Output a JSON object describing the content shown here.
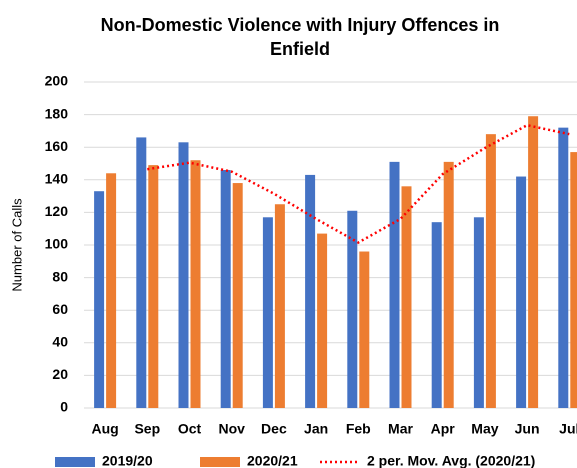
{
  "chart_data": {
    "type": "bar",
    "title": [
      "Non-Domestic Violence with Injury Offences in",
      "Enfield"
    ],
    "y_label": "Number of Calls",
    "categories": [
      "Aug",
      "Sep",
      "Oct",
      "Nov",
      "Dec",
      "Jan",
      "Feb",
      "Mar",
      "Apr",
      "May",
      "Jun",
      "Jul"
    ],
    "series": [
      {
        "name": "2019/20",
        "color": "#4472c4",
        "values": [
          133,
          166,
          163,
          146,
          117,
          143,
          121,
          151,
          114,
          117,
          142,
          172
        ]
      },
      {
        "name": "2020/21",
        "color": "#ed7d31",
        "values": [
          144,
          149,
          152,
          138,
          125,
          107,
          96,
          136,
          151,
          168,
          179,
          157
        ]
      },
      {
        "name": "2 per. Mov. Avg. (2020/21)",
        "type": "line",
        "color": "#ff0000",
        "values": [
          null,
          146.5,
          150.5,
          145,
          131.5,
          116,
          101.5,
          116,
          143.5,
          159.5,
          173.5,
          168
        ]
      }
    ],
    "ylim": [
      0,
      200
    ],
    "yticks": [
      0,
      20,
      40,
      60,
      80,
      100,
      120,
      140,
      160,
      180,
      200
    ],
    "grid": true,
    "legend": "bottom"
  }
}
